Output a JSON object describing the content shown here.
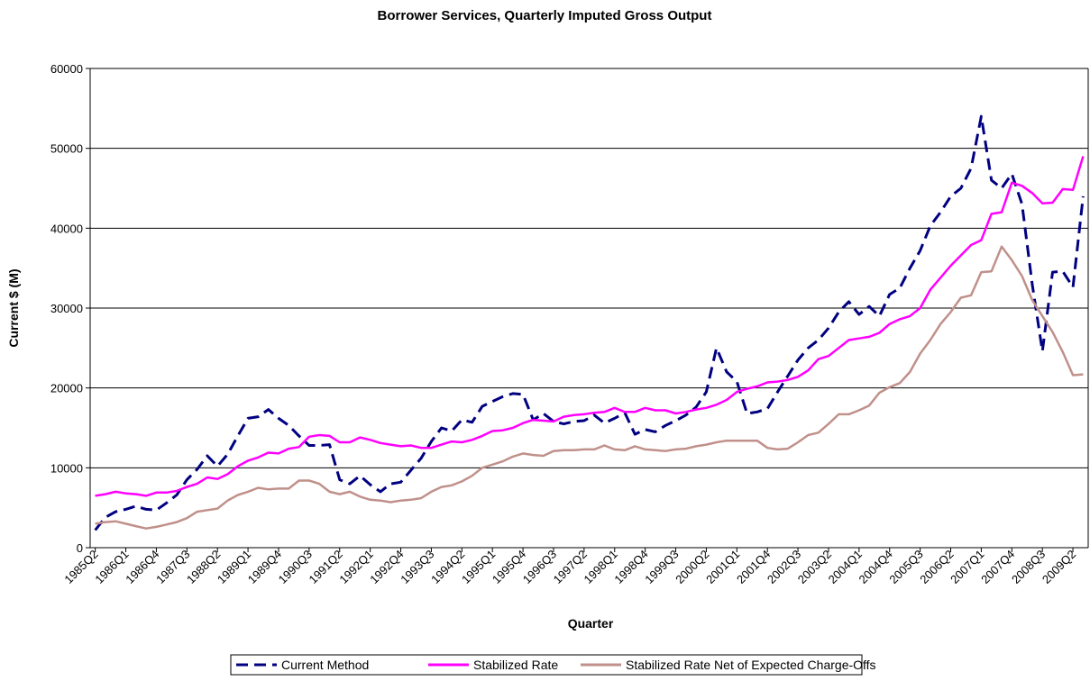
{
  "chart_data": {
    "type": "line",
    "title": "Borrower Services, Quarterly Imputed Gross Output",
    "x_label": "Quarter",
    "y_label": "Current $ (M)",
    "categories": [
      "1985Q2",
      null,
      null,
      "1986Q1",
      null,
      null,
      "1986Q4",
      null,
      null,
      "1987Q3",
      null,
      null,
      "1988Q2",
      null,
      null,
      "1989Q1",
      null,
      null,
      "1989Q4",
      null,
      null,
      "1990Q3",
      null,
      null,
      "1991Q2",
      null,
      null,
      "1992Q1",
      null,
      null,
      "1992Q4",
      null,
      null,
      "1993Q3",
      null,
      null,
      "1994Q2",
      null,
      null,
      "1995Q1",
      null,
      null,
      "1995Q4",
      null,
      null,
      "1996Q3",
      null,
      null,
      "1997Q2",
      null,
      null,
      "1998Q1",
      null,
      null,
      "1998Q4",
      null,
      null,
      "1999Q3",
      null,
      null,
      "2000Q2",
      null,
      null,
      "2001Q1",
      null,
      null,
      "2001Q4",
      null,
      null,
      "2002Q3",
      null,
      null,
      "2003Q2",
      null,
      null,
      "2004Q1",
      null,
      null,
      "2004Q4",
      null,
      null,
      "2005Q3",
      null,
      null,
      "2006Q2",
      null,
      null,
      "2007Q1",
      null,
      null,
      "2007Q4",
      null,
      null,
      "2008Q3",
      null,
      null,
      "2009Q2",
      null
    ],
    "series": [
      {
        "name": "Current Method",
        "color": "#000080",
        "dashed": true,
        "values": [
          2200,
          3800,
          4500,
          4800,
          5200,
          4800,
          4700,
          5600,
          6600,
          8500,
          9800,
          11500,
          10200,
          11700,
          14000,
          16200,
          16400,
          17300,
          16200,
          15300,
          14000,
          12800,
          12800,
          12900,
          8500,
          8000,
          9000,
          7900,
          7000,
          8000,
          8200,
          9700,
          11200,
          13300,
          15000,
          14600,
          16000,
          15700,
          17700,
          18300,
          18900,
          19300,
          19200,
          16000,
          16800,
          15800,
          15500,
          15800,
          15900,
          16600,
          15600,
          16200,
          16900,
          14200,
          14800,
          14500,
          15300,
          15900,
          16600,
          17600,
          19500,
          25000,
          22000,
          20800,
          16800,
          17000,
          17400,
          19500,
          21500,
          23500,
          25000,
          26000,
          27500,
          29500,
          30800,
          29200,
          30200,
          29000,
          31700,
          32500,
          35000,
          37200,
          40300,
          42000,
          44000,
          45000,
          47500,
          54000,
          46000,
          45000,
          46800,
          43000,
          33000,
          24600,
          34500,
          34600,
          32600,
          44000
        ]
      },
      {
        "name": "Stabilized Rate",
        "color": "#ff00ff",
        "dashed": false,
        "values": [
          6500,
          6700,
          7000,
          6800,
          6700,
          6500,
          6900,
          6900,
          7100,
          7600,
          8000,
          8800,
          8600,
          9200,
          10200,
          10900,
          11300,
          11900,
          11800,
          12400,
          12600,
          13900,
          14100,
          14000,
          13200,
          13200,
          13800,
          13500,
          13100,
          12900,
          12700,
          12800,
          12500,
          12500,
          12900,
          13300,
          13200,
          13500,
          14000,
          14600,
          14700,
          15000,
          15600,
          16000,
          15900,
          15800,
          16400,
          16600,
          16700,
          16900,
          17000,
          17500,
          17000,
          17000,
          17500,
          17200,
          17200,
          16800,
          17000,
          17300,
          17500,
          17900,
          18500,
          19500,
          19900,
          20200,
          20700,
          20800,
          21000,
          21400,
          22200,
          23600,
          24000,
          25000,
          26000,
          26200,
          26400,
          26900,
          28000,
          28600,
          29000,
          30000,
          32300,
          33800,
          35300,
          36600,
          37900,
          38500,
          41800,
          42000,
          45700,
          45300,
          44400,
          43100,
          43200,
          44900,
          44800,
          49000
        ]
      },
      {
        "name": "Stabilized Rate Net of Expected Charge-Offs",
        "color": "#c0908a",
        "dashed": false,
        "values": [
          3000,
          3200,
          3300,
          3000,
          2700,
          2400,
          2600,
          2900,
          3200,
          3700,
          4500,
          4700,
          4900,
          5900,
          6600,
          7000,
          7500,
          7300,
          7400,
          7400,
          8400,
          8400,
          8000,
          7000,
          6700,
          7000,
          6400,
          6000,
          5900,
          5700,
          5900,
          6000,
          6200,
          7000,
          7600,
          7800,
          8300,
          9000,
          10000,
          10400,
          10800,
          11400,
          11800,
          11600,
          11500,
          12100,
          12200,
          12200,
          12300,
          12300,
          12800,
          12300,
          12200,
          12700,
          12300,
          12200,
          12100,
          12300,
          12400,
          12700,
          12900,
          13200,
          13400,
          13400,
          13400,
          13400,
          12500,
          12300,
          12400,
          13200,
          14100,
          14400,
          15500,
          16700,
          16700,
          17200,
          17800,
          19400,
          20100,
          20600,
          22000,
          24300,
          26000,
          28000,
          29500,
          31300,
          31600,
          34500,
          34600,
          37700,
          36000,
          34000,
          31000,
          29000,
          27000,
          24500,
          21600,
          21700
        ]
      }
    ],
    "ylim": [
      0,
      60000
    ],
    "yticks": [
      0,
      10000,
      20000,
      30000,
      40000,
      50000,
      60000
    ],
    "grid": true,
    "legend": "bottom"
  }
}
